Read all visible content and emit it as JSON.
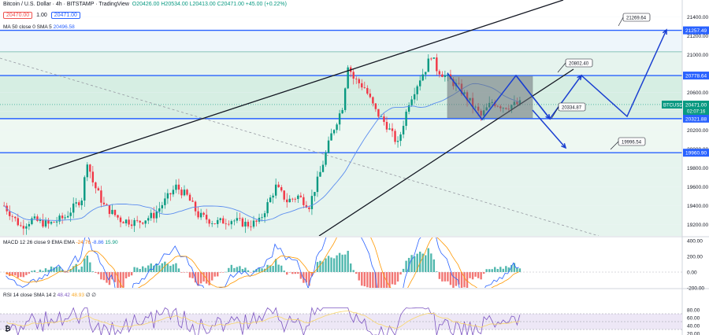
{
  "header": {
    "symbol_line": "Bitcoin / U.S. Dollar · 4h · BITSTAMP · TradingView",
    "ohlc": "O20426.00 H20534.00 L20413.00 C20471.00 +45.00 (+0.22%)",
    "bid": "20470.00",
    "spread": "1.00",
    "ask": "20471.00",
    "ma_label": "MA 50 close 0 SMA 5",
    "ma_value": "20496.58"
  },
  "macd": {
    "label": "MACD 12 26 close 9 EMA EMA",
    "v1": "-24.76",
    "v2": "-8.86",
    "v3": "15.90"
  },
  "rsi": {
    "label": "RSI 14 close SMA 14 2",
    "v1": "48.42",
    "v2": "48.93",
    "v3": "∅ ∅"
  },
  "colors": {
    "up": "#089981",
    "down": "#f23645",
    "level": "#2962ff",
    "zone_fill": "#d6eee3",
    "box_fill": "#6b7178",
    "trend": "#131722",
    "ma": "#5b8def",
    "macd_line": "#2962ff",
    "signal_line": "#ff9800",
    "rsi_line": "#7e57c2",
    "rsi_band": "#ede7f6"
  },
  "chart_data": {
    "type": "candlestick",
    "symbol": "BTCUSD",
    "timeframe": "4h",
    "ylim": [
      19060,
      21560
    ],
    "price_axis_ticks": [
      "21400.00",
      "21200.00",
      "21000.00",
      "20800.00",
      "20600.00",
      "20400.00",
      "20200.00",
      "20000.00",
      "19800.00",
      "19600.00",
      "19400.00",
      "19200.00"
    ],
    "levels": [
      "21257.49",
      "20778.64",
      "20321.88",
      "19960.90"
    ],
    "last_price_label": "BTCUSD",
    "last_price": "20471.00",
    "countdown": "02:07:16",
    "callouts": [
      "21269.64",
      "20802.40",
      "20334.87",
      "19996.54"
    ],
    "candles_summary": "range approx 19150 to 21080; uptrend from ~19300 to ~21080 then consolidation 20300–20800",
    "macd_axis_ticks": [
      "400.00",
      "200.00",
      "0.00",
      "-200.00"
    ],
    "rsi_axis_ticks": [
      "80.00",
      "60.00",
      "40.00",
      "20.00"
    ],
    "bottom_axis_label": "₿"
  }
}
